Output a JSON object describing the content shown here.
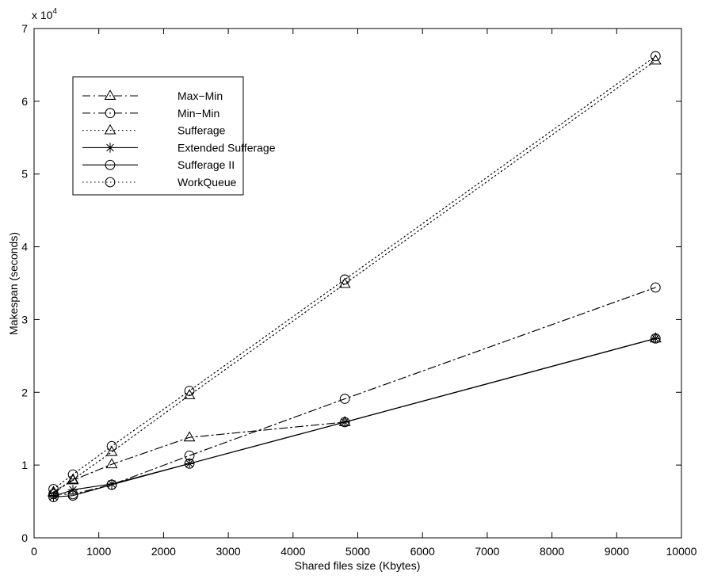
{
  "chart_data": {
    "type": "line",
    "xlabel": "Shared files size (Kbytes)",
    "ylabel": "Makespan (seconds)",
    "y_exponent_label": {
      "base": "x 10",
      "power": "4"
    },
    "xlim": [
      0,
      10000
    ],
    "ylim": [
      0,
      70000
    ],
    "xticks": [
      0,
      1000,
      2000,
      3000,
      4000,
      5000,
      6000,
      7000,
      8000,
      9000,
      10000
    ],
    "yticks": [
      0,
      10000,
      20000,
      30000,
      40000,
      50000,
      60000,
      70000
    ],
    "xtick_labels": [
      "0",
      "1000",
      "2000",
      "3000",
      "4000",
      "5000",
      "6000",
      "7000",
      "8000",
      "9000",
      "10000"
    ],
    "ytick_labels": [
      "0",
      "1",
      "2",
      "3",
      "4",
      "5",
      "6",
      "7"
    ],
    "grid": false,
    "legend_position": "top-left",
    "x": [
      300,
      600,
      1200,
      2400,
      4800,
      9600
    ],
    "series": [
      {
        "name": "Max−Min",
        "values": [
          6200,
          7900,
          10100,
          13800,
          15900,
          27400
        ],
        "line_style": "dashdot",
        "marker": "triangle",
        "color": "#000000"
      },
      {
        "name": "Min−Min",
        "values": [
          6000,
          6000,
          7300,
          11300,
          19100,
          34400
        ],
        "line_style": "dashdot",
        "marker": "circle",
        "color": "#000000"
      },
      {
        "name": "Sufferage",
        "values": [
          6300,
          8000,
          11800,
          19600,
          34900,
          65600
        ],
        "line_style": "dotted",
        "marker": "triangle",
        "color": "#000000"
      },
      {
        "name": "Extended Sufferage",
        "values": [
          5700,
          6600,
          7400,
          10200,
          15900,
          27400
        ],
        "line_style": "solid",
        "marker": "star",
        "color": "#000000"
      },
      {
        "name": "Sufferage II",
        "values": [
          5600,
          5800,
          7300,
          10200,
          15900,
          27400
        ],
        "line_style": "solid",
        "marker": "circle",
        "color": "#000000"
      },
      {
        "name": "WorkQueue",
        "values": [
          6700,
          8700,
          12600,
          20200,
          35500,
          66200
        ],
        "line_style": "dotted",
        "marker": "circle",
        "color": "#000000"
      }
    ]
  }
}
